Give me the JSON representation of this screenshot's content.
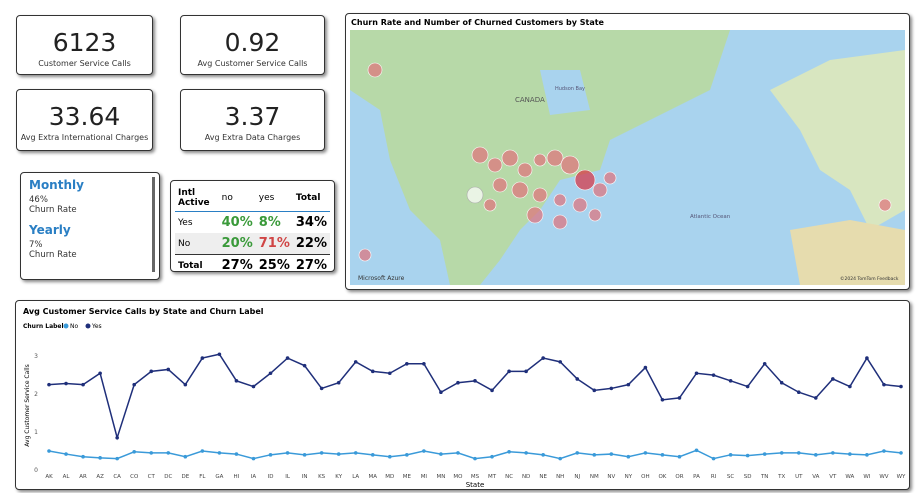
{
  "cards": [
    {
      "value": "6123",
      "label": "Customer Service Calls"
    },
    {
      "value": "0.92",
      "label": "Avg Customer Service Calls"
    },
    {
      "value": "33.64",
      "label": "Avg Extra International Charges"
    },
    {
      "value": "3.37",
      "label": "Avg Extra Data Charges"
    }
  ],
  "slicer": [
    {
      "title": "Monthly",
      "value": "46%",
      "label": "Churn Rate"
    },
    {
      "title": "Yearly",
      "value": "7%",
      "label": "Churn Rate"
    }
  ],
  "table": {
    "header": [
      "Intl Active",
      "no",
      "yes",
      "Total"
    ],
    "rows": [
      [
        "Yes",
        "40%",
        "8%",
        "34%"
      ],
      [
        "No",
        "20%",
        "71%",
        "22%"
      ],
      [
        "Total",
        "27%",
        "25%",
        "27%"
      ]
    ]
  },
  "map": {
    "title": "Churn Rate and Number of Churned Customers by State",
    "labels": [
      "CANADA",
      "Hudson Bay",
      "Atlantic Ocean",
      "Microsoft Azure",
      "©2024 TomTom Feedback"
    ]
  },
  "chart_data": {
    "type": "line",
    "title": "Avg Customer Service Calls by State and Churn Label",
    "legend_title": "Churn Label",
    "x_label": "State",
    "y_label": "Avg Customer Service Calls",
    "categories": [
      "AK",
      "AL",
      "AR",
      "AZ",
      "CA",
      "CO",
      "CT",
      "DC",
      "DE",
      "FL",
      "GA",
      "HI",
      "IA",
      "ID",
      "IL",
      "IN",
      "KS",
      "KY",
      "LA",
      "MA",
      "MD",
      "ME",
      "MI",
      "MN",
      "MO",
      "MS",
      "MT",
      "NC",
      "ND",
      "NE",
      "NH",
      "NJ",
      "NM",
      "NV",
      "NY",
      "OH",
      "OK",
      "OR",
      "PA",
      "RI",
      "SC",
      "SD",
      "TN",
      "TX",
      "UT",
      "VA",
      "VT",
      "WA",
      "WI",
      "WV",
      "WY"
    ],
    "series": [
      {
        "name": "No",
        "color": "#3a9ad9",
        "values": [
          0.5,
          0.42,
          0.35,
          0.32,
          0.3,
          0.48,
          0.45,
          0.45,
          0.35,
          0.5,
          0.45,
          0.42,
          0.3,
          0.4,
          0.45,
          0.4,
          0.45,
          0.42,
          0.45,
          0.4,
          0.35,
          0.4,
          0.5,
          0.42,
          0.45,
          0.3,
          0.35,
          0.48,
          0.45,
          0.4,
          0.3,
          0.45,
          0.4,
          0.42,
          0.35,
          0.45,
          0.4,
          0.35,
          0.52,
          0.3,
          0.4,
          0.38,
          0.42,
          0.45,
          0.45,
          0.4,
          0.45,
          0.42,
          0.4,
          0.5,
          0.45
        ]
      },
      {
        "name": "Yes",
        "color": "#1f2f7a",
        "values": [
          2.25,
          2.28,
          2.25,
          2.55,
          0.85,
          2.25,
          2.6,
          2.65,
          2.25,
          2.95,
          3.05,
          2.35,
          2.2,
          2.55,
          2.95,
          2.75,
          2.15,
          2.3,
          2.85,
          2.6,
          2.55,
          2.8,
          2.8,
          2.05,
          2.3,
          2.35,
          2.1,
          2.6,
          2.6,
          2.95,
          2.85,
          2.4,
          2.1,
          2.15,
          2.25,
          2.7,
          1.85,
          1.9,
          2.55,
          2.5,
          2.35,
          2.2,
          2.8,
          2.3,
          2.05,
          1.9,
          2.4,
          2.2,
          2.95,
          2.25,
          2.2
        ]
      }
    ],
    "ylim": [
      0,
      3.4
    ],
    "yticks": [
      0,
      1,
      2,
      3
    ],
    "grid": false
  }
}
